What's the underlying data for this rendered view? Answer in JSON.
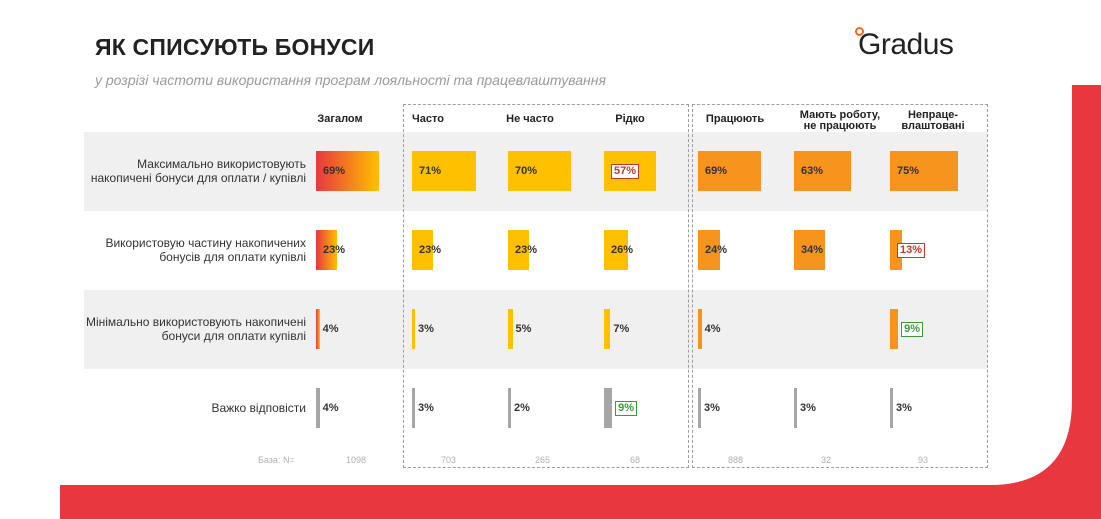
{
  "header": {
    "title": "ЯК СПИСУЮТЬ БОНУСИ",
    "subtitle": "у розрізі частоти використання програм лояльності та працевлаштування",
    "logo_text": "Gradus"
  },
  "colors": {
    "red": "#e8373f",
    "yellow": "#ffc000",
    "orange": "#f7941d",
    "gray": "#a6a6a6",
    "highlight_red": "#c0392b",
    "highlight_green": "#3a9a3a"
  },
  "chart_data": {
    "type": "bar",
    "columns": [
      {
        "key": "total",
        "label": "Загалом",
        "group": "total"
      },
      {
        "key": "often",
        "label": "Часто",
        "group": "frequency"
      },
      {
        "key": "not_often",
        "label": "Не часто",
        "group": "frequency"
      },
      {
        "key": "rarely",
        "label": "Рідко",
        "group": "frequency"
      },
      {
        "key": "working",
        "label": "Працюють",
        "group": "employment"
      },
      {
        "key": "has_job",
        "label": "Мають роботу, не працюють",
        "group": "employment"
      },
      {
        "key": "unemployed",
        "label": "Непраце-влаштовані",
        "group": "employment"
      }
    ],
    "rows": [
      {
        "label": "Максимально використовують накопичені бонуси для оплати / купівлі",
        "values": [
          69,
          71,
          70,
          57,
          69,
          63,
          75
        ],
        "value_labels": [
          "69%",
          "71%",
          "70%",
          "57%",
          "69%",
          "63%",
          "75%"
        ],
        "highlight": [
          null,
          null,
          null,
          "low",
          null,
          null,
          null
        ]
      },
      {
        "label": "Використовую частину накопичених бонусів для оплати купівлі",
        "values": [
          23,
          23,
          23,
          26,
          24,
          34,
          13
        ],
        "value_labels": [
          "23%",
          "23%",
          "23%",
          "26%",
          "24%",
          "34%",
          "13%"
        ],
        "highlight": [
          null,
          null,
          null,
          null,
          null,
          null,
          "low"
        ]
      },
      {
        "label": "Мінімально використовують накопичені бонуси для оплати купівлі",
        "values": [
          4,
          3,
          5,
          7,
          4,
          0,
          9
        ],
        "value_labels": [
          "4%",
          "3%",
          "5%",
          "7%",
          "4%",
          "",
          "9%"
        ],
        "highlight": [
          null,
          null,
          null,
          null,
          null,
          null,
          "high"
        ]
      },
      {
        "label": "Важко відповісти",
        "values": [
          4,
          3,
          2,
          9,
          3,
          3,
          3
        ],
        "value_labels": [
          "4%",
          "3%",
          "2%",
          "9%",
          "3%",
          "3%",
          "3%"
        ],
        "highlight": [
          null,
          null,
          null,
          "high",
          null,
          null,
          null
        ]
      }
    ],
    "base": {
      "label": "База: N=",
      "values": [
        "1098",
        "703",
        "265",
        "68",
        "888",
        "32",
        "93"
      ]
    }
  }
}
